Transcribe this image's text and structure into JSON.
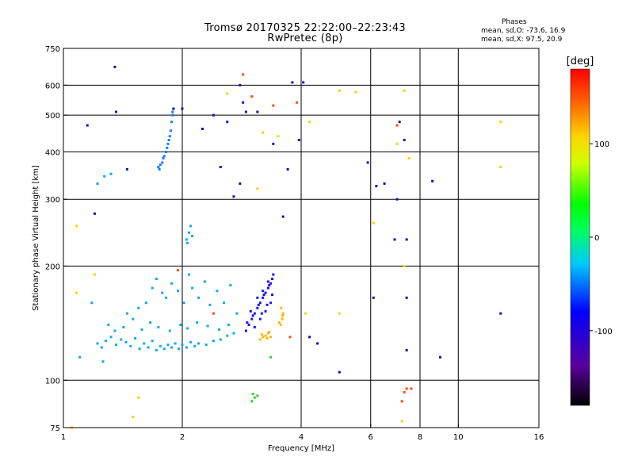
{
  "title_line1": "Tromsø 20170325 22:22:00–22:23:43",
  "title_line2": "RwPretec (8p)",
  "stats": {
    "title": "Phases",
    "o_line": "mean, sd,O: -73.6, 16.9",
    "x_line": "mean, sd,X:  97.5, 20.9"
  },
  "chart_data": {
    "type": "scatter",
    "xlabel": "Frequency [MHz]",
    "ylabel": "Stationary phase Virtual Height [km]",
    "x_scale": "log",
    "y_scale": "log",
    "xlim": [
      1,
      16
    ],
    "ylim": [
      75,
      750
    ],
    "x_ticks": [
      1,
      2,
      4,
      6,
      8,
      10,
      16
    ],
    "x_tick_labels": [
      "1",
      "2",
      "4",
      "6",
      "8",
      "10",
      "16"
    ],
    "x_grid": [
      2,
      4,
      6,
      8,
      10
    ],
    "y_ticks": [
      75,
      100,
      200,
      300,
      400,
      500,
      600,
      750
    ],
    "y_tick_labels": [
      "75",
      "100",
      "200",
      "300",
      "400",
      "500",
      "600",
      "750"
    ],
    "y_grid": [
      100,
      200,
      300,
      400,
      500,
      600
    ],
    "colorbar": {
      "label": "[deg]",
      "range": [
        -180,
        180
      ],
      "ticks": [
        100,
        0,
        -100
      ],
      "tick_labels": [
        "100",
        "0",
        "-100"
      ]
    },
    "series": [
      {
        "points": [
          [
            1.22,
            125
          ],
          [
            1.25,
            122
          ],
          [
            1.28,
            127
          ],
          [
            1.32,
            130
          ],
          [
            1.36,
            124
          ],
          [
            1.4,
            128
          ],
          [
            1.44,
            126
          ],
          [
            1.48,
            123
          ],
          [
            1.52,
            129
          ],
          [
            1.56,
            121
          ],
          [
            1.6,
            125
          ],
          [
            1.64,
            122
          ],
          [
            1.68,
            127
          ],
          [
            1.72,
            120
          ],
          [
            1.76,
            123
          ],
          [
            1.8,
            121
          ],
          [
            1.84,
            124
          ],
          [
            1.88,
            122
          ],
          [
            1.92,
            125
          ],
          [
            1.96,
            121
          ],
          [
            2.0,
            124
          ],
          [
            2.05,
            122
          ],
          [
            2.1,
            126
          ],
          [
            2.15,
            123
          ],
          [
            2.2,
            125
          ],
          [
            2.3,
            124
          ],
          [
            2.4,
            127
          ],
          [
            2.5,
            128
          ],
          [
            2.6,
            131
          ],
          [
            2.7,
            133
          ],
          [
            1.45,
            150
          ],
          [
            1.5,
            145
          ],
          [
            1.55,
            155
          ],
          [
            1.62,
            160
          ],
          [
            1.68,
            175
          ],
          [
            1.72,
            185
          ],
          [
            1.78,
            170
          ],
          [
            1.82,
            165
          ],
          [
            1.88,
            180
          ],
          [
            1.95,
            172
          ],
          [
            2.02,
            160
          ],
          [
            2.08,
            190
          ],
          [
            2.12,
            175
          ],
          [
            2.2,
            165
          ],
          [
            2.28,
            182
          ],
          [
            2.35,
            158
          ],
          [
            2.45,
            172
          ],
          [
            2.55,
            160
          ],
          [
            2.65,
            178
          ],
          [
            2.75,
            150
          ],
          [
            1.3,
            140
          ],
          [
            1.35,
            135
          ],
          [
            1.42,
            138
          ],
          [
            1.58,
            136
          ],
          [
            1.66,
            142
          ],
          [
            1.74,
            138
          ],
          [
            1.86,
            135
          ],
          [
            1.98,
            140
          ],
          [
            2.06,
            137
          ],
          [
            2.18,
            142
          ],
          [
            2.32,
            139
          ],
          [
            2.48,
            136
          ],
          [
            2.62,
            140
          ],
          [
            1.1,
            115
          ],
          [
            1.26,
            112
          ],
          [
            1.18,
            160
          ],
          [
            2.05,
            235
          ],
          [
            2.08,
            245
          ],
          [
            2.1,
            255
          ],
          [
            2.06,
            230
          ],
          [
            2.12,
            240
          ],
          [
            1.27,
            345
          ],
          [
            1.32,
            350
          ],
          [
            1.22,
            330
          ]
        ]
      },
      {
        "points": [
          [
            1.75,
            360
          ],
          [
            1.78,
            375
          ],
          [
            1.8,
            390
          ],
          [
            1.83,
            410
          ],
          [
            1.85,
            430
          ],
          [
            1.87,
            455
          ],
          [
            1.88,
            480
          ],
          [
            1.89,
            500
          ],
          [
            1.9,
            520
          ],
          [
            1.86,
            440
          ],
          [
            1.82,
            400
          ],
          [
            1.79,
            385
          ],
          [
            1.76,
            370
          ],
          [
            1.84,
            420
          ],
          [
            1.89,
            510
          ],
          [
            1.74,
            365
          ]
        ]
      },
      {
        "points": [
          [
            2.9,
            135
          ],
          [
            2.95,
            140
          ],
          [
            3.0,
            145
          ],
          [
            3.05,
            150
          ],
          [
            3.1,
            155
          ],
          [
            3.15,
            160
          ],
          [
            3.2,
            165
          ],
          [
            3.25,
            170
          ],
          [
            3.3,
            175
          ],
          [
            3.35,
            180
          ],
          [
            3.38,
            185
          ],
          [
            3.4,
            190
          ],
          [
            2.92,
            142
          ],
          [
            3.02,
            148
          ],
          [
            3.12,
            158
          ],
          [
            3.22,
            168
          ],
          [
            3.32,
            178
          ],
          [
            3.05,
            138
          ],
          [
            3.15,
            145
          ],
          [
            3.25,
            152
          ],
          [
            3.35,
            160
          ],
          [
            3.1,
            165
          ],
          [
            3.2,
            172
          ],
          [
            3.3,
            182
          ],
          [
            2.98,
            152
          ],
          [
            3.28,
            158
          ],
          [
            3.38,
            168
          ],
          [
            3.18,
            150
          ]
        ]
      },
      {
        "points": [
          [
            3.15,
            128
          ],
          [
            3.2,
            130
          ],
          [
            3.25,
            131
          ],
          [
            3.3,
            133
          ],
          [
            3.35,
            130
          ],
          [
            3.18,
            132
          ],
          [
            3.28,
            129
          ],
          [
            3.32,
            134
          ],
          [
            3.55,
            140
          ],
          [
            3.58,
            145
          ],
          [
            3.6,
            150
          ],
          [
            3.56,
            155
          ],
          [
            3.52,
            142
          ],
          [
            3.59,
            148
          ]
        ]
      },
      {
        "points": [
          [
            3.0,
            88
          ],
          [
            3.05,
            90
          ],
          [
            3.1,
            91
          ],
          [
            3.02,
            92
          ],
          [
            3.35,
            115
          ]
        ]
      },
      {
        "points": [
          [
            1.35,
            670
          ],
          [
            1.36,
            510
          ],
          [
            1.15,
            470
          ],
          [
            1.9,
            520
          ],
          [
            2.0,
            520
          ],
          [
            2.25,
            460
          ],
          [
            2.4,
            500
          ],
          [
            2.6,
            480
          ],
          [
            2.8,
            600
          ],
          [
            2.85,
            540
          ],
          [
            3.1,
            510
          ],
          [
            3.4,
            420
          ],
          [
            3.7,
            360
          ],
          [
            3.8,
            610
          ],
          [
            3.95,
            430
          ],
          [
            4.05,
            610
          ],
          [
            5.9,
            375
          ],
          [
            6.2,
            325
          ],
          [
            6.5,
            330
          ],
          [
            7.0,
            300
          ],
          [
            7.1,
            480
          ],
          [
            7.3,
            430
          ],
          [
            8.6,
            335
          ],
          [
            2.5,
            365
          ],
          [
            2.8,
            330
          ],
          [
            3.6,
            270
          ],
          [
            4.2,
            130
          ],
          [
            4.4,
            125
          ],
          [
            5.0,
            105
          ],
          [
            6.1,
            165
          ],
          [
            7.4,
            120
          ],
          [
            7.4,
            165
          ],
          [
            9.0,
            115
          ],
          [
            12.8,
            150
          ],
          [
            1.2,
            275
          ],
          [
            1.45,
            360
          ],
          [
            2.7,
            305
          ],
          [
            2.9,
            510
          ],
          [
            6.9,
            235
          ],
          [
            7.4,
            235
          ]
        ]
      },
      {
        "points": [
          [
            1.08,
            255
          ],
          [
            1.08,
            170
          ],
          [
            1.2,
            190
          ],
          [
            1.55,
            90
          ],
          [
            3.2,
            450
          ],
          [
            3.5,
            440
          ],
          [
            4.2,
            480
          ],
          [
            5.0,
            580
          ],
          [
            5.5,
            575
          ],
          [
            7.3,
            580
          ],
          [
            7.0,
            420
          ],
          [
            12.8,
            365
          ],
          [
            12.8,
            480
          ],
          [
            2.6,
            570
          ],
          [
            4.1,
            150
          ],
          [
            5.0,
            150
          ],
          [
            6.1,
            260
          ],
          [
            7.3,
            200
          ],
          [
            1.05,
            75
          ],
          [
            7.2,
            78
          ],
          [
            7.5,
            385
          ],
          [
            3.1,
            320
          ],
          [
            1.5,
            80
          ]
        ]
      },
      {
        "points": [
          [
            2.85,
            640
          ],
          [
            3.0,
            560
          ],
          [
            3.4,
            530
          ],
          [
            3.9,
            540
          ],
          [
            7.0,
            470
          ],
          [
            7.4,
            95
          ],
          [
            7.6,
            95
          ],
          [
            7.3,
            93
          ],
          [
            7.2,
            88
          ],
          [
            2.4,
            150
          ],
          [
            1.95,
            195
          ],
          [
            3.75,
            130
          ]
        ]
      }
    ],
    "series_colors": [
      "#0ea8f0",
      "#1a78ff",
      "#1414ff",
      "#ffb400",
      "#30d030",
      "#1010c0",
      "#ffd000",
      "#ff4a00"
    ]
  }
}
